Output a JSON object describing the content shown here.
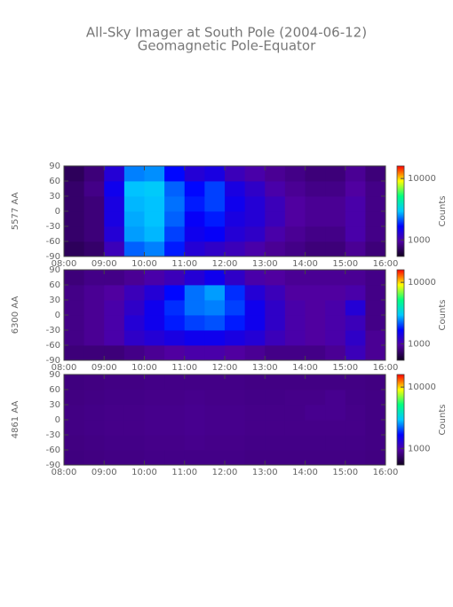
{
  "title": "All-Sky Imager at South Pole (2004-06-12)",
  "subtitle": "Geomagnetic Pole-Equator",
  "chart_data": [
    {
      "type": "heatmap",
      "ylabel": "5577 AA",
      "xlim": [
        "08:00",
        "16:00"
      ],
      "xticks": [
        "08:00",
        "09:00",
        "10:00",
        "11:00",
        "12:00",
        "13:00",
        "14:00",
        "15:00",
        "16:00"
      ],
      "ylim": [
        -90,
        90
      ],
      "yticks": [
        -90,
        -60,
        -30,
        0,
        30,
        60,
        90
      ],
      "values": [
        [
          700,
          750,
          1100,
          2200,
          2400,
          1800,
          1300,
          1200,
          1100,
          1000,
          900,
          850,
          800,
          800,
          900,
          800
        ],
        [
          750,
          800,
          1300,
          2600,
          2800,
          2000,
          1500,
          1600,
          1300,
          1200,
          1000,
          900,
          850,
          850,
          1000,
          850
        ],
        [
          750,
          800,
          1400,
          2700,
          2900,
          2200,
          1600,
          1800,
          1400,
          1300,
          1100,
          950,
          900,
          900,
          1000,
          850
        ],
        [
          750,
          800,
          1400,
          2800,
          2900,
          2300,
          1800,
          2000,
          1500,
          1300,
          1100,
          950,
          900,
          900,
          1000,
          850
        ],
        [
          750,
          850,
          1500,
          2900,
          3000,
          2200,
          1700,
          2000,
          1400,
          1200,
          1000,
          900,
          850,
          850,
          950,
          850
        ],
        [
          700,
          800,
          1300,
          2400,
          2500,
          1700,
          1300,
          1400,
          1100,
          1000,
          900,
          850,
          800,
          800,
          900,
          800
        ]
      ],
      "colorbar_label": "Counts",
      "clim": [
        540,
        16000
      ],
      "cticks": [
        1000,
        10000
      ],
      "log_color": true,
      "colormap": [
        "#100020",
        "#5000a0",
        "#0000ff",
        "#00c8ff",
        "#00ff80",
        "#ffff00",
        "#ff0000"
      ]
    },
    {
      "type": "heatmap",
      "ylabel": "6300 AA",
      "xlim": [
        "08:00",
        "16:00"
      ],
      "xticks": [
        "08:00",
        "09:00",
        "10:00",
        "11:00",
        "12:00",
        "13:00",
        "14:00",
        "15:00",
        "16:00"
      ],
      "ylim": [
        -90,
        90
      ],
      "yticks": [
        -90,
        -60,
        -30,
        0,
        30,
        60,
        90
      ],
      "values": [
        [
          800,
          800,
          800,
          850,
          900,
          950,
          1000,
          1000,
          950,
          900,
          850,
          850,
          850,
          900,
          1100,
          900
        ],
        [
          850,
          900,
          1000,
          1200,
          1300,
          1400,
          1500,
          1500,
          1400,
          1300,
          1100,
          1000,
          950,
          1000,
          1200,
          900
        ],
        [
          850,
          900,
          1000,
          1300,
          1500,
          1800,
          2000,
          2100,
          1800,
          1500,
          1200,
          1000,
          950,
          1000,
          1100,
          850
        ],
        [
          850,
          900,
          1000,
          1200,
          1500,
          1900,
          2300,
          2400,
          2000,
          1500,
          1200,
          1000,
          950,
          1000,
          1300,
          850
        ],
        [
          850,
          900,
          950,
          1100,
          1300,
          1700,
          2300,
          2600,
          1900,
          1300,
          1100,
          950,
          950,
          950,
          1000,
          850
        ],
        [
          800,
          850,
          850,
          900,
          1000,
          1100,
          1300,
          1500,
          1200,
          1000,
          950,
          900,
          900,
          900,
          900,
          850
        ]
      ],
      "colorbar_label": "Counts",
      "clim": [
        540,
        16000
      ],
      "cticks": [
        1000,
        10000
      ],
      "log_color": true,
      "colormap": [
        "#100020",
        "#5000a0",
        "#0000ff",
        "#00c8ff",
        "#00ff80",
        "#ffff00",
        "#ff0000"
      ]
    },
    {
      "type": "heatmap",
      "ylabel": "4861 AA",
      "xlim": [
        "08:00",
        "16:00"
      ],
      "xticks": [
        "08:00",
        "09:00",
        "10:00",
        "11:00",
        "12:00",
        "13:00",
        "14:00",
        "15:00",
        "16:00"
      ],
      "ylim": [
        -90,
        90
      ],
      "yticks": [
        -90,
        -60,
        -30,
        0,
        30,
        60,
        90
      ],
      "values": [
        [
          820,
          830,
          840,
          840,
          850,
          850,
          850,
          850,
          850,
          840,
          840,
          840,
          840,
          840,
          840,
          830
        ],
        [
          830,
          840,
          850,
          850,
          860,
          860,
          870,
          860,
          860,
          850,
          850,
          850,
          850,
          850,
          850,
          840
        ],
        [
          840,
          850,
          860,
          860,
          870,
          870,
          880,
          870,
          870,
          860,
          860,
          860,
          860,
          860,
          860,
          840
        ],
        [
          840,
          850,
          860,
          860,
          870,
          870,
          880,
          870,
          870,
          860,
          860,
          860,
          880,
          880,
          860,
          840
        ],
        [
          830,
          840,
          850,
          850,
          860,
          860,
          870,
          860,
          860,
          850,
          850,
          860,
          860,
          880,
          850,
          840
        ],
        [
          820,
          830,
          840,
          840,
          850,
          850,
          850,
          850,
          850,
          840,
          840,
          840,
          840,
          840,
          840,
          830
        ]
      ],
      "colorbar_label": "Counts",
      "clim": [
        540,
        16000
      ],
      "cticks": [
        1000,
        10000
      ],
      "log_color": true,
      "colormap": [
        "#100020",
        "#5000a0",
        "#0000ff",
        "#00c8ff",
        "#00ff80",
        "#ffff00",
        "#ff0000"
      ]
    }
  ]
}
